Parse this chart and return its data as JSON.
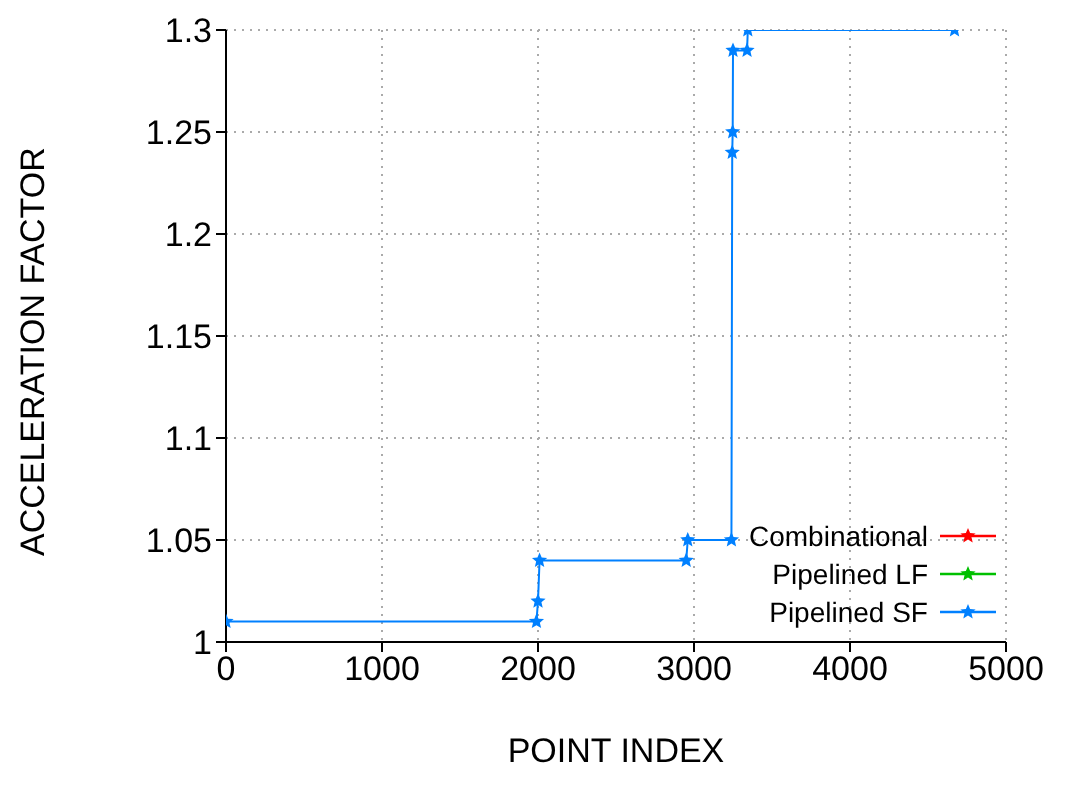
{
  "chart_data": {
    "type": "line",
    "xlabel": "POINT INDEX",
    "ylabel": "ACCELERATION FACTOR",
    "xlim": [
      0,
      5000
    ],
    "xticks": [
      0,
      1000,
      2000,
      3000,
      4000,
      5000
    ],
    "ylim": [
      1,
      1.3
    ],
    "yticks": [
      1,
      1.05,
      1.1,
      1.15,
      1.2,
      1.25,
      1.3
    ],
    "grid": true,
    "legend": "bottom right",
    "marker": "star",
    "series": [
      {
        "name": "Combinational",
        "color": "#ff0000"
      },
      {
        "name": "Pipelined LF",
        "color": "#00c000"
      },
      {
        "name": "Pipelined SF",
        "color": "#0080ff",
        "x": [
          0,
          1990,
          2000,
          2010,
          2950,
          2960,
          3240,
          3245,
          3248,
          3250,
          3340,
          3345,
          4670
        ],
        "values": [
          1.01,
          1.01,
          1.02,
          1.04,
          1.04,
          1.05,
          1.05,
          1.24,
          1.25,
          1.29,
          1.29,
          1.3,
          1.3
        ]
      }
    ]
  }
}
